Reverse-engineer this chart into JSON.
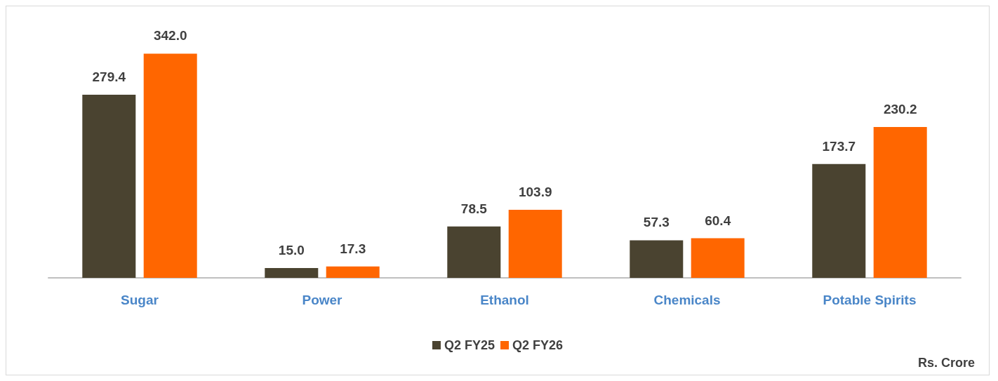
{
  "chart_data": {
    "type": "bar",
    "categories": [
      "Sugar",
      "Power",
      "Ethanol",
      "Chemicals",
      "Potable Spirits"
    ],
    "series": [
      {
        "name": "Q2 FY25",
        "color": "#4a4330",
        "values": [
          279.4,
          15.0,
          78.5,
          57.3,
          173.7
        ],
        "value_labels": [
          "279.4",
          "15.0",
          "78.5",
          "57.3",
          "173.7"
        ]
      },
      {
        "name": "Q2 FY26",
        "color": "#ff6600",
        "values": [
          342.0,
          17.3,
          103.9,
          60.4,
          230.2
        ],
        "value_labels": [
          "342.0",
          "17.3",
          "103.9",
          "60.4",
          "230.2"
        ]
      }
    ],
    "legend": "bottom",
    "grid": false,
    "annotations": [
      "Rs. Crore"
    ]
  }
}
